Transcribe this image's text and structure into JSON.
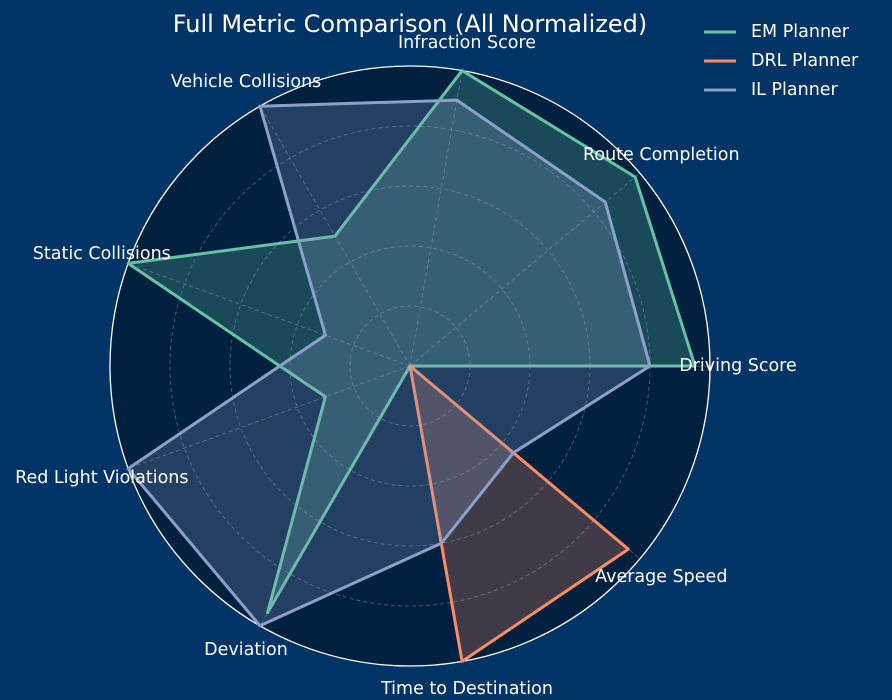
{
  "chart_data": {
    "type": "radar",
    "title": "Full Metric Comparison (All Normalized)",
    "axes": [
      "Driving Score",
      "Route Completion",
      "Infraction Score",
      "Vehicle Collisions",
      "Static Collisions",
      "Red Light Violations",
      "Deviation",
      "Time to Destination",
      "Average Speed"
    ],
    "rlim": [
      0,
      1
    ],
    "grid": true,
    "legend_position": "top-right",
    "series": [
      {
        "name": "EM Planner",
        "color": "#66c2a5",
        "values": [
          0.95,
          0.98,
          1.0,
          0.5,
          1.0,
          0.3,
          0.95,
          0.0,
          0.0
        ]
      },
      {
        "name": "DRL Planner",
        "color": "#fc8d62",
        "values": [
          0.0,
          0.0,
          0.0,
          0.0,
          0.0,
          0.0,
          0.0,
          1.0,
          0.95
        ]
      },
      {
        "name": "IL Planner",
        "color": "#8da0cb",
        "values": [
          0.8,
          0.85,
          0.9,
          1.0,
          0.3,
          1.0,
          1.0,
          0.6,
          0.45
        ]
      }
    ]
  }
}
